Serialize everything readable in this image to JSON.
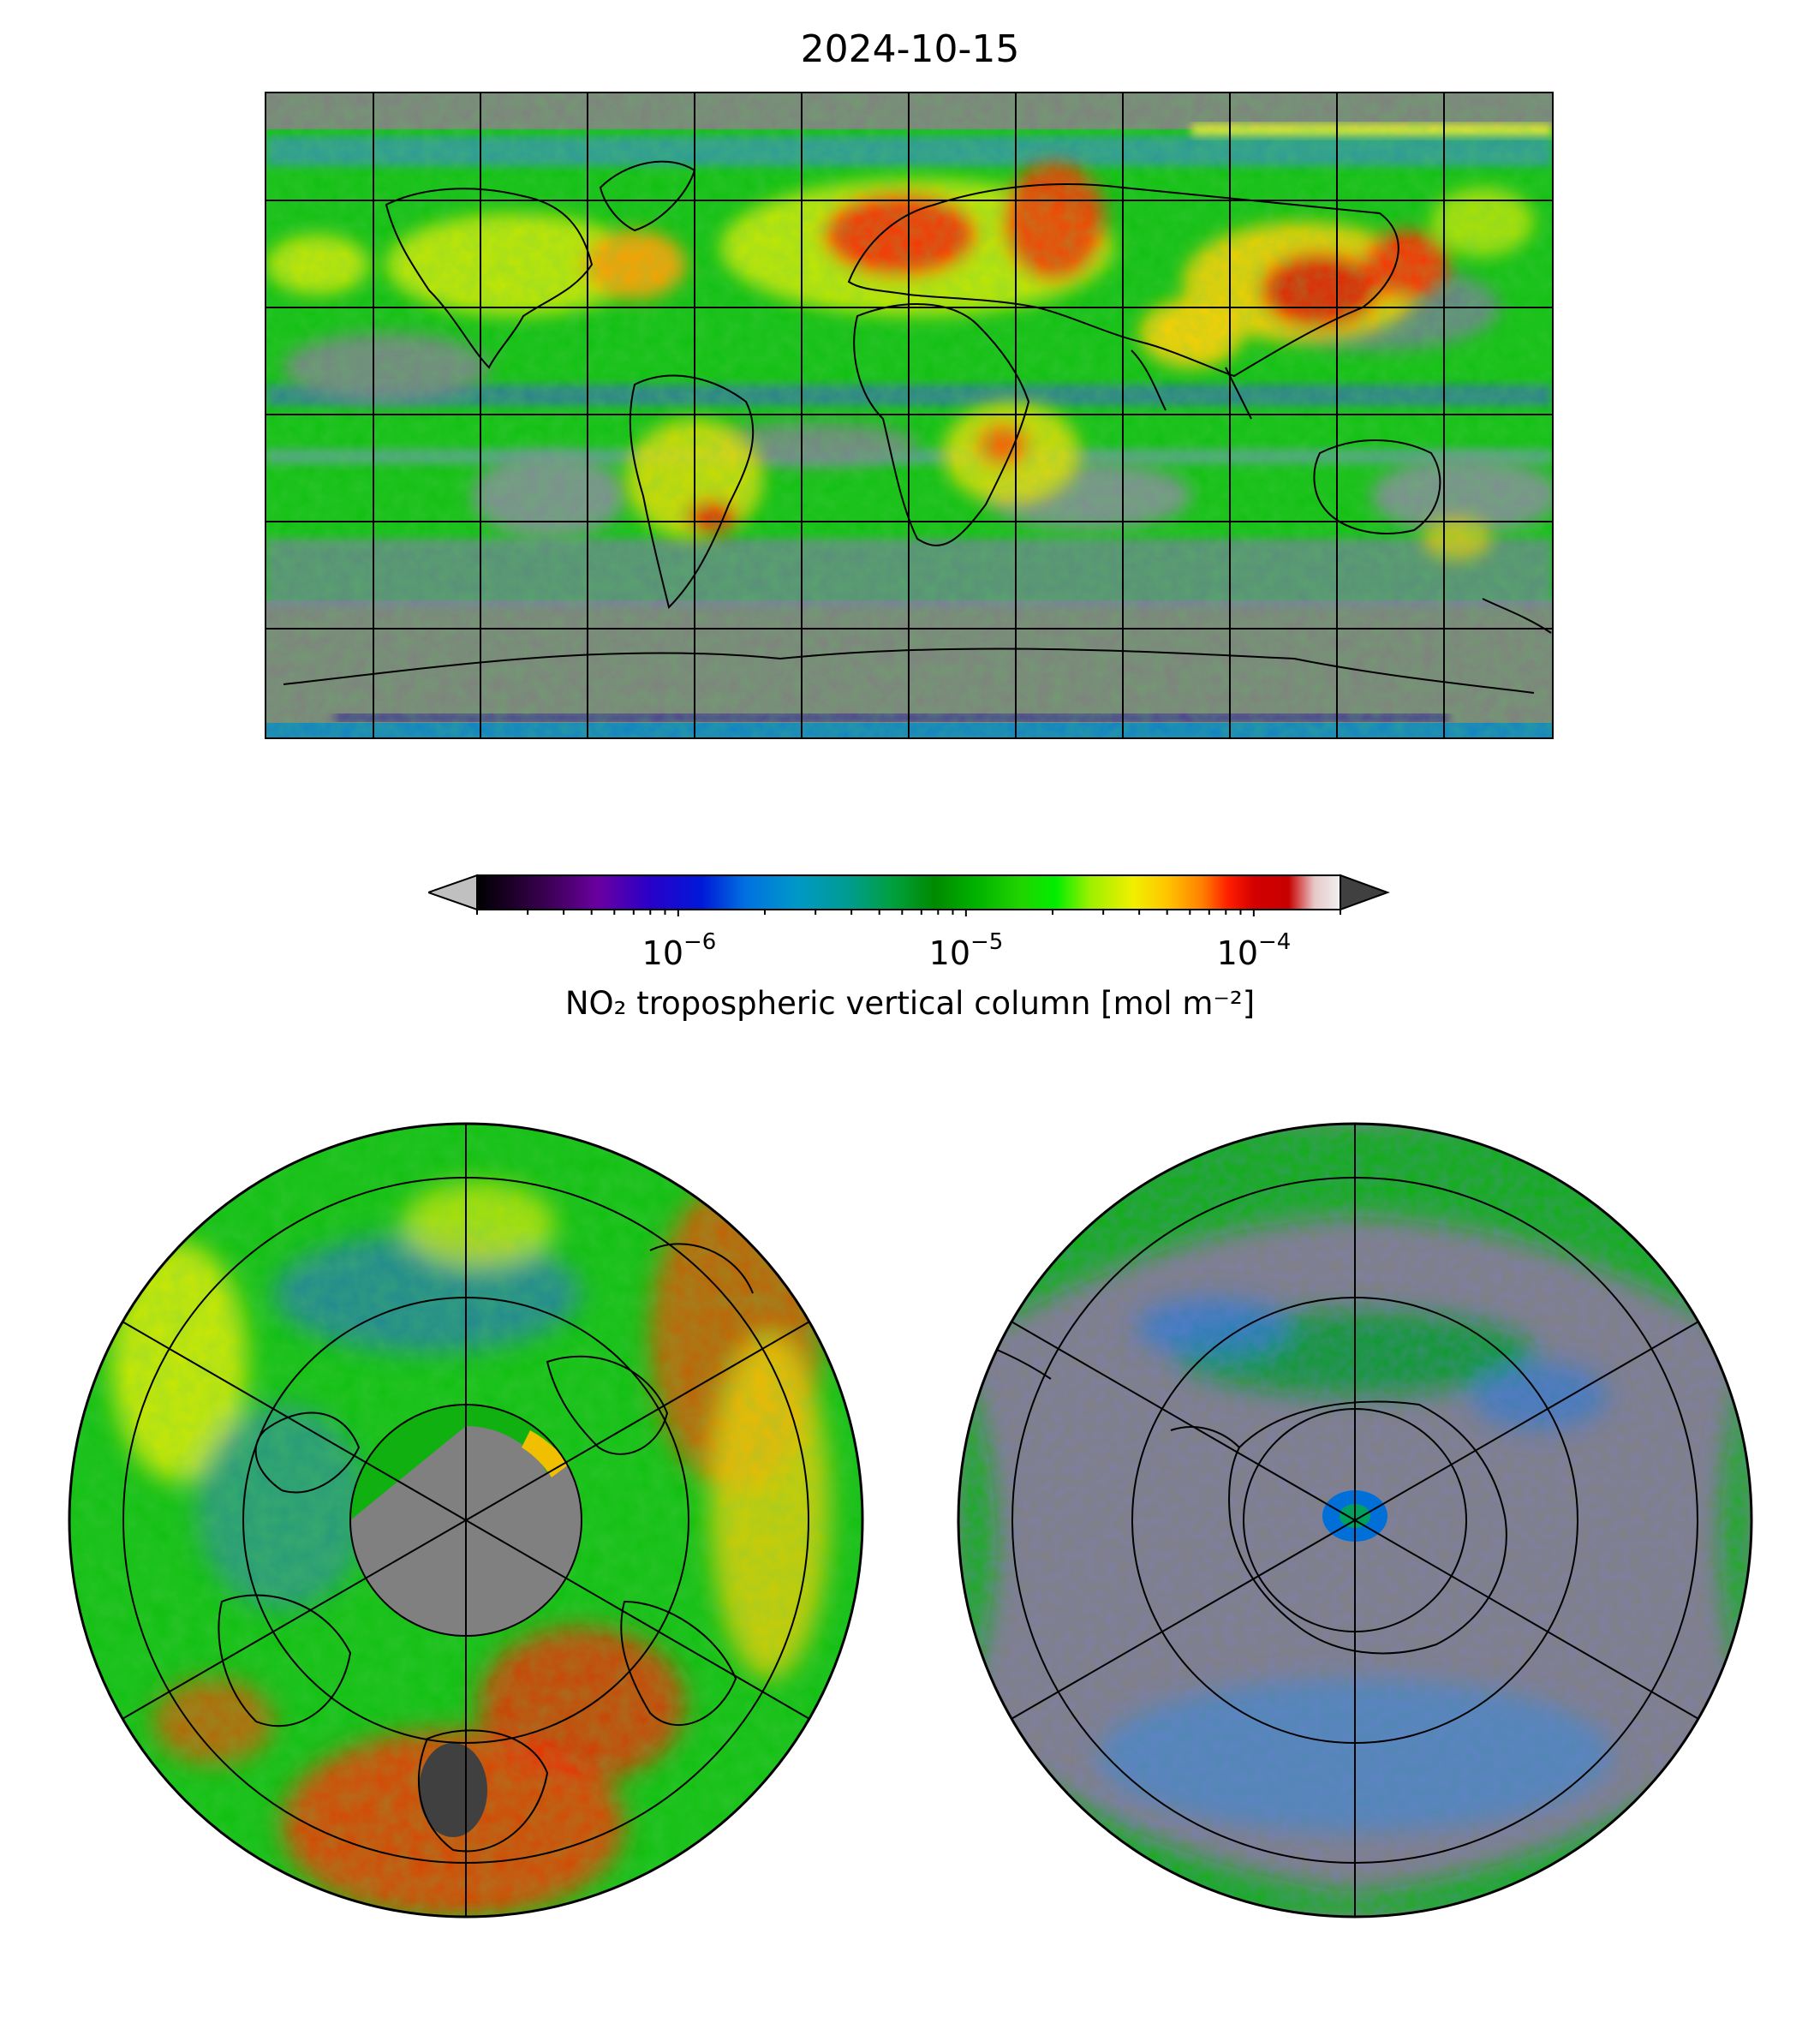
{
  "figure": {
    "title": "2024-10-15"
  },
  "colorbar": {
    "label": "NO₂ tropospheric vertical column [mol m⁻²]",
    "scale": "log",
    "range": [
      2e-07,
      0.0002
    ],
    "extend": "both",
    "ticks": [
      {
        "base": "10",
        "exponent": "−6",
        "value": 1e-06
      },
      {
        "base": "10",
        "exponent": "−5",
        "value": 1e-05
      },
      {
        "base": "10",
        "exponent": "−4",
        "value": 0.0001
      }
    ],
    "colors": [
      "#000000",
      "#3a0052",
      "#6a00a0",
      "#2a00c8",
      "#0018d8",
      "#0070e0",
      "#0098c8",
      "#009c90",
      "#00a040",
      "#008a00",
      "#00b400",
      "#22d400",
      "#00ee00",
      "#9cf000",
      "#f0f000",
      "#ffc400",
      "#ff8000",
      "#ff1e00",
      "#d40000",
      "#c80000",
      "#e8c8c8",
      "#f0f0f0"
    ],
    "under_color": "#c0c0c0",
    "over_color": "#404040"
  },
  "maps": {
    "world": {
      "projection": "plate-carree",
      "no_data_color": "#808080",
      "land_outline_color": "#000000",
      "gridline_color": "#000000"
    },
    "north_polar": {
      "projection": "north-polar-stereographic"
    },
    "south_polar": {
      "projection": "south-polar-stereographic"
    }
  }
}
